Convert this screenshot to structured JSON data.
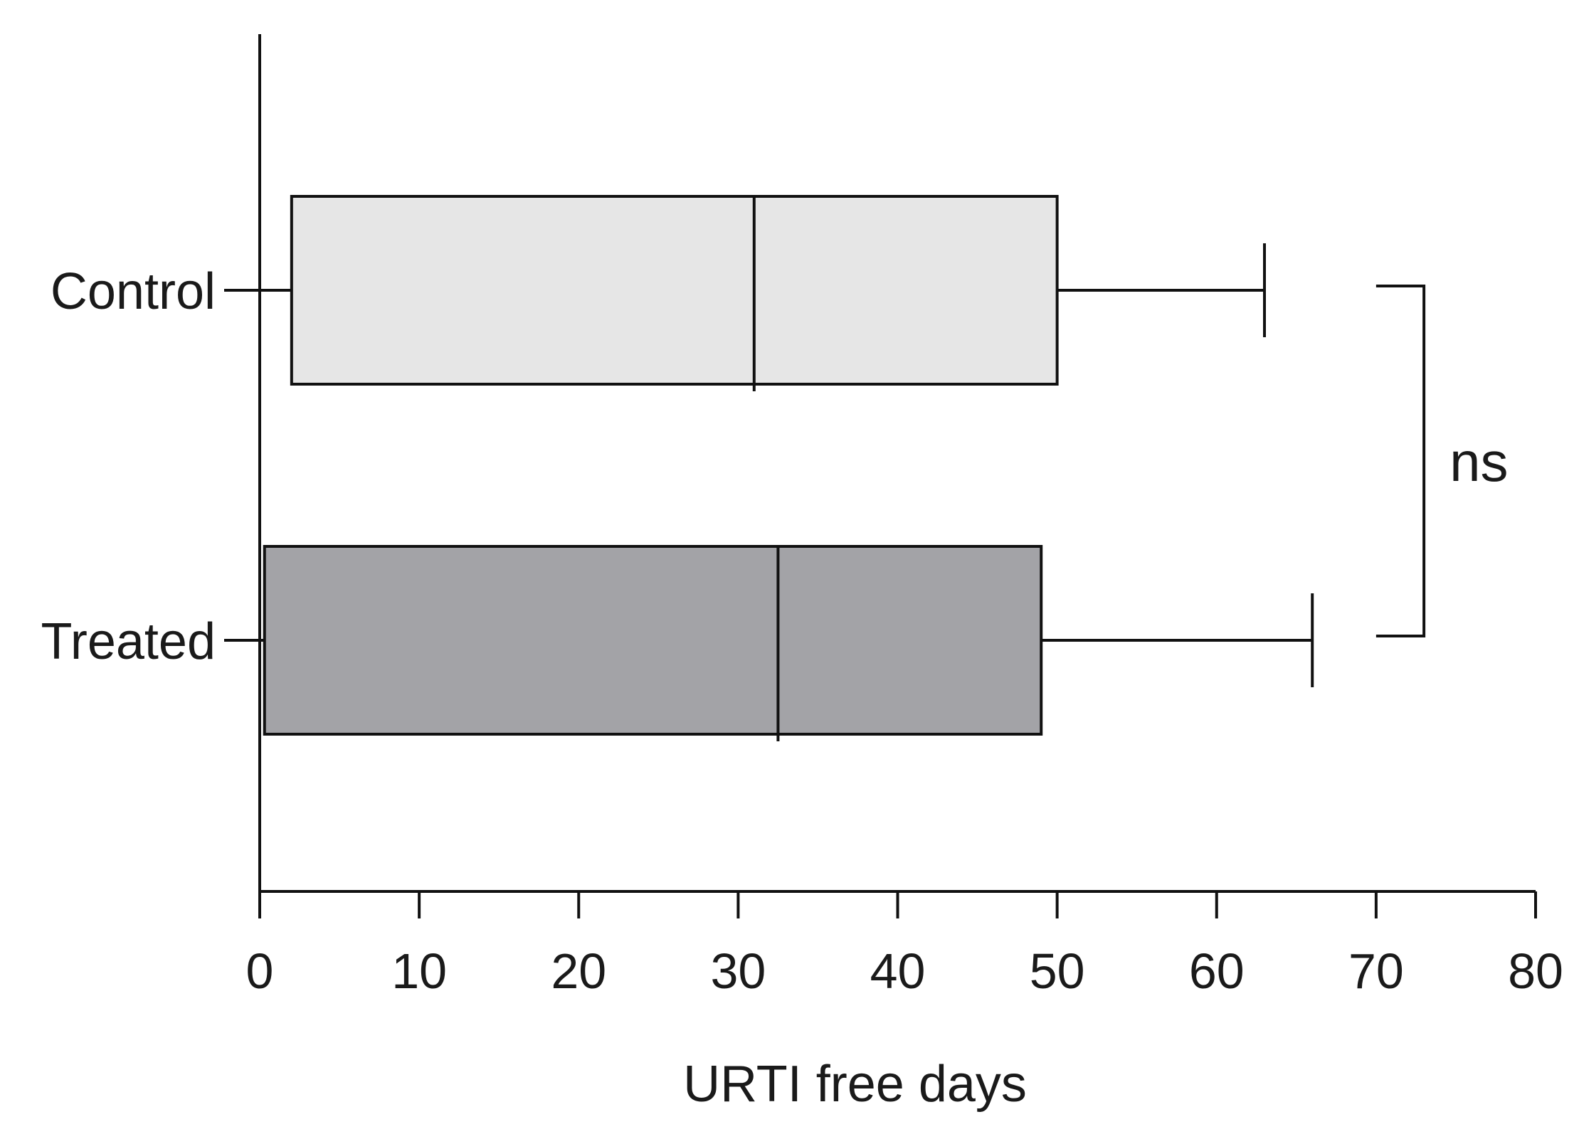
{
  "chart_data": {
    "type": "boxplot",
    "orientation": "horizontal",
    "categories": [
      "Control",
      "Treated"
    ],
    "series": [
      {
        "category": "Control",
        "min": 0,
        "q1": 2,
        "median": 31,
        "q3": 50,
        "max": 63,
        "fill": "#e6e6e6"
      },
      {
        "category": "Treated",
        "min": 0,
        "q1": 0.3,
        "median": 32.5,
        "q3": 49,
        "max": 66,
        "fill": "#a3a3a7"
      }
    ],
    "xlabel": "URTI free days",
    "ylabel": "",
    "xlim": [
      0,
      80
    ],
    "xticks": [
      0,
      10,
      20,
      30,
      40,
      50,
      60,
      70,
      80
    ],
    "grid": false,
    "legend": "none",
    "annotations": [
      {
        "type": "bracket",
        "between": [
          "Control",
          "Treated"
        ],
        "at_x": 73,
        "label": "ns"
      }
    ]
  }
}
